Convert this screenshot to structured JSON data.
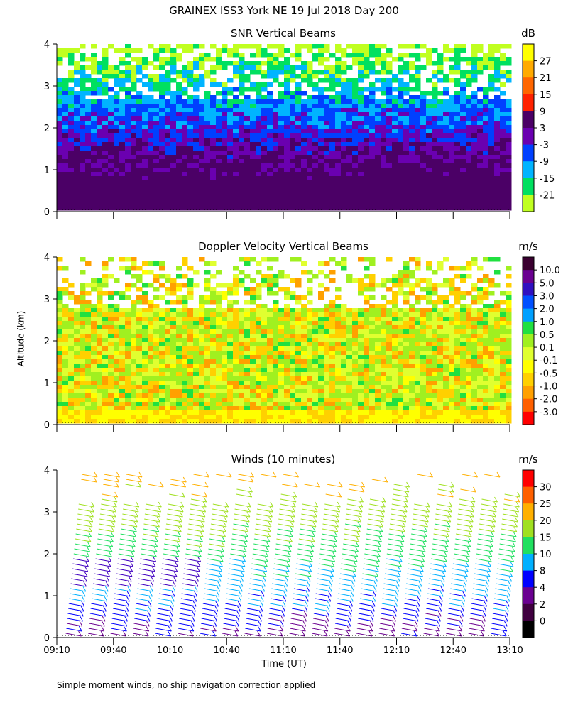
{
  "figure": {
    "title": "GRAINEX ISS3 York NE   19 Jul 2018 Day 200",
    "y_axis_label": "Altitude (km)",
    "x_axis_label": "Time (UT)",
    "footnote": "Simple moment winds, no ship navigation correction applied",
    "x_ticks": [
      "09:10",
      "09:40",
      "10:10",
      "10:40",
      "11:10",
      "11:40",
      "12:10",
      "12:40",
      "13:10"
    ],
    "y_ticks": [
      "0",
      "1",
      "2",
      "3",
      "4"
    ]
  },
  "chart_data": [
    {
      "type": "heatmap",
      "title": "SNR Vertical Beams",
      "unit": "dB",
      "ylim": [
        0,
        4
      ],
      "xlim": [
        "09:10",
        "13:10"
      ],
      "colorbar": {
        "labels": [
          "27",
          "21",
          "15",
          "9",
          "3",
          "-3",
          "-9",
          "-15",
          "-21"
        ],
        "colors": [
          "#ffff00",
          "#ffaa00",
          "#ff6600",
          "#ff2200",
          "#4b0066",
          "#6a00b0",
          "#0040ff",
          "#00b4ff",
          "#00e060",
          "#c0ff20"
        ]
      }
    },
    {
      "type": "heatmap",
      "title": "Doppler Velocity Vertical Beams",
      "unit": "m/s",
      "ylim": [
        0,
        4
      ],
      "xlim": [
        "09:10",
        "13:10"
      ],
      "colorbar": {
        "labels": [
          "10.0",
          "5.0",
          "3.0",
          "2.0",
          "1.0",
          "0.5",
          "0.1",
          "-0.1",
          "-0.5",
          "-1.0",
          "-2.0",
          "-3.0"
        ],
        "colors": [
          "#3a0030",
          "#6a0090",
          "#3010c0",
          "#0050ff",
          "#00a0ff",
          "#20e040",
          "#a0f020",
          "#e0ff30",
          "#ffff00",
          "#ffd000",
          "#ffa000",
          "#ff6000",
          "#ff0000"
        ]
      }
    },
    {
      "type": "scatter",
      "title": "Winds (10 minutes)",
      "unit": "m/s",
      "ylim": [
        0,
        4
      ],
      "xlim": [
        "09:10",
        "13:10"
      ],
      "colorbar": {
        "labels": [
          "30",
          "25",
          "20",
          "15",
          "10",
          "8",
          "4",
          "2",
          "0"
        ],
        "colors": [
          "#ff0000",
          "#ff6000",
          "#ffb000",
          "#a0e020",
          "#20e060",
          "#00b0ff",
          "#0000ff",
          "#6a0090",
          "#400040",
          "#000000"
        ]
      }
    }
  ]
}
